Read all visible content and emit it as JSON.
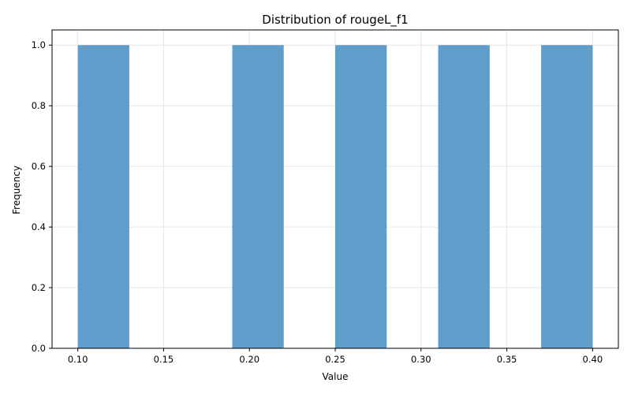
{
  "chart_data": {
    "type": "bar",
    "title": "Distribution of rougeL_f1",
    "xlabel": "Value",
    "ylabel": "Frequency",
    "xlim": [
      0.085,
      0.415
    ],
    "ylim": [
      0.0,
      1.05
    ],
    "xticks": [
      "0.10",
      "0.15",
      "0.20",
      "0.25",
      "0.30",
      "0.35",
      "0.40"
    ],
    "yticks": [
      "0.0",
      "0.2",
      "0.4",
      "0.6",
      "0.8",
      "1.0"
    ],
    "grid": true,
    "bar_color": "#5f9ecb",
    "bins": [
      {
        "x0": 0.1,
        "x1": 0.13,
        "count": 1
      },
      {
        "x0": 0.13,
        "x1": 0.16,
        "count": 0
      },
      {
        "x0": 0.16,
        "x1": 0.19,
        "count": 0
      },
      {
        "x0": 0.19,
        "x1": 0.22,
        "count": 1
      },
      {
        "x0": 0.22,
        "x1": 0.25,
        "count": 0
      },
      {
        "x0": 0.25,
        "x1": 0.28,
        "count": 1
      },
      {
        "x0": 0.28,
        "x1": 0.31,
        "count": 0
      },
      {
        "x0": 0.31,
        "x1": 0.34,
        "count": 1
      },
      {
        "x0": 0.34,
        "x1": 0.37,
        "count": 0
      },
      {
        "x0": 0.37,
        "x1": 0.4,
        "count": 1
      }
    ]
  }
}
